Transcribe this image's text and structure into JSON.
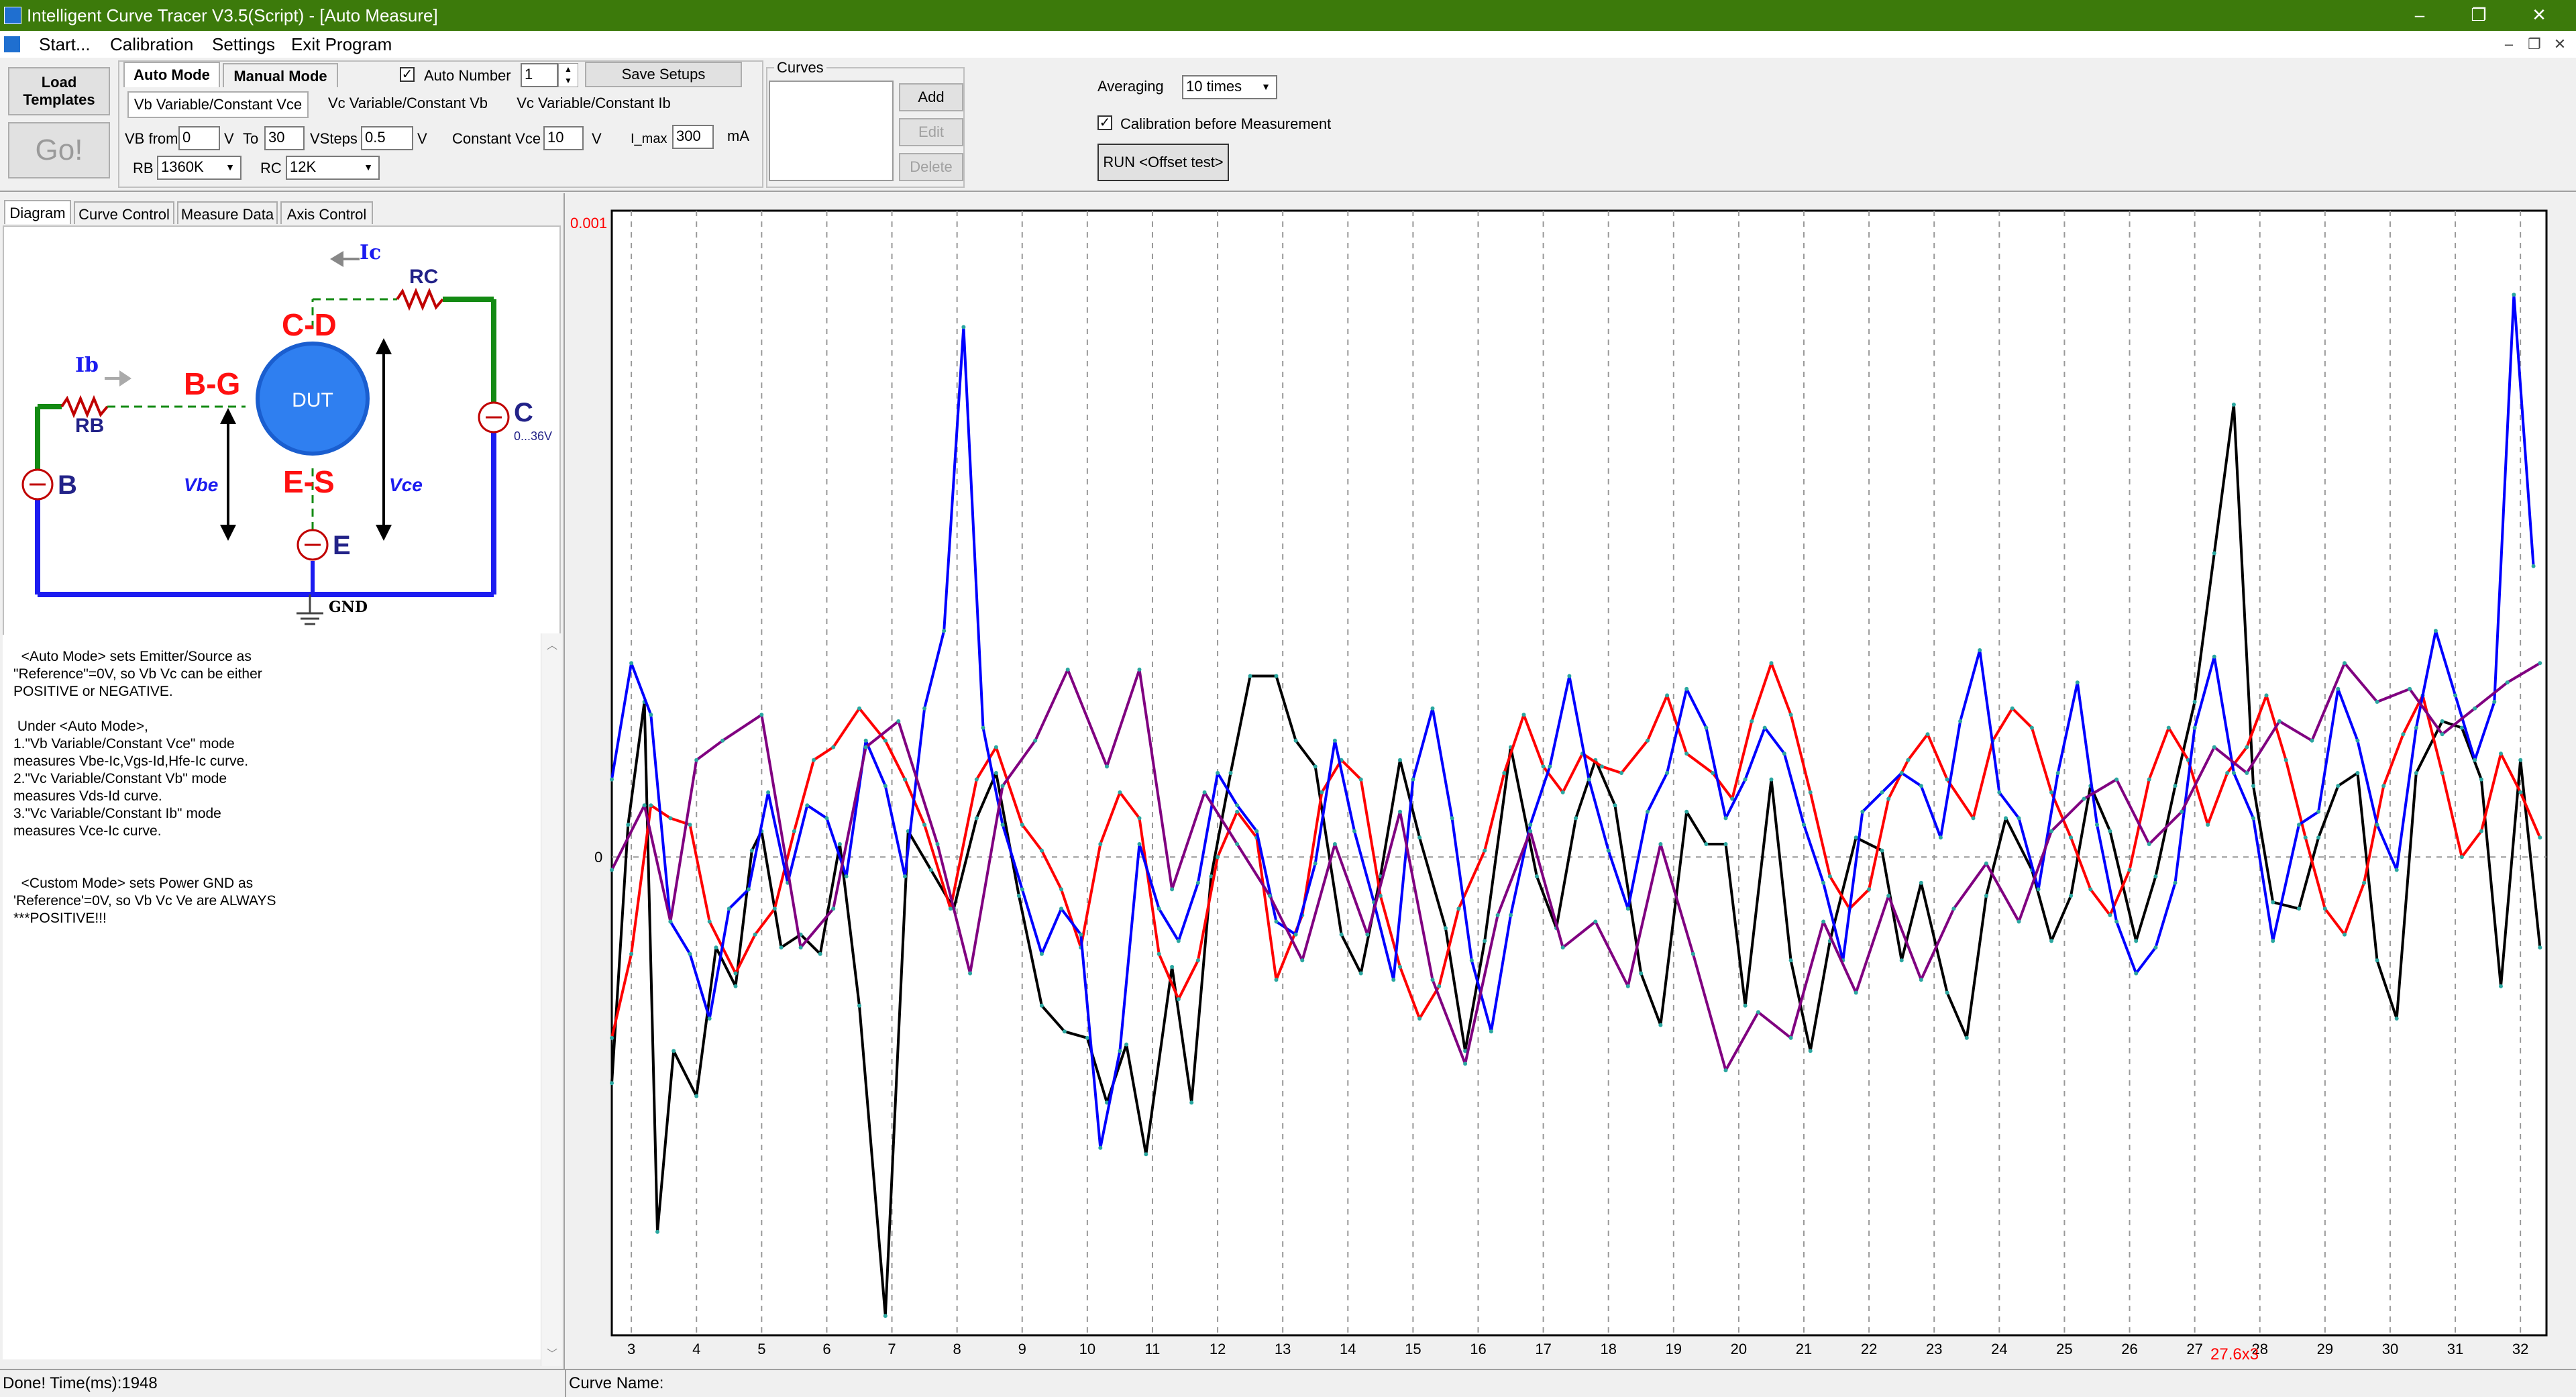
{
  "window": {
    "title": "Intelligent Curve Tracer V3.5(Script) - [Auto Measure]",
    "controls": [
      "–",
      "❐",
      "✕"
    ]
  },
  "menu": [
    "Start...",
    "Calibration",
    "Settings",
    "Exit Program"
  ],
  "mdi_controls": [
    "–",
    "❐",
    "✕"
  ],
  "toolbar": {
    "load_templates": "Load Templates",
    "go": "Go!",
    "mode_tabs": [
      "Auto Mode",
      "Manual Mode"
    ],
    "auto_number_label": "Auto Number",
    "auto_number_checked": true,
    "auto_number_value": "1",
    "save_setups": "Save Setups",
    "sub_tabs": [
      "Vb Variable/Constant Vce",
      "Vc Variable/Constant Vb",
      "Vc Variable/Constant Ib"
    ],
    "vb_from_label": "VB from",
    "vb_from": "0",
    "v_unit": "V",
    "to_label": "To",
    "to_value": "30",
    "vsteps_label": "VSteps",
    "vsteps_value": "0.5",
    "const_vce_label": "Constant Vce",
    "const_vce_value": "10",
    "imax_label": "I_max",
    "imax_value": "300",
    "ma_unit": "mA",
    "rb_label": "RB",
    "rb_value": "1360K",
    "rc_label": "RC",
    "rc_value": "12K",
    "curves_label": "Curves",
    "add": "Add",
    "edit": "Edit",
    "delete": "Delete",
    "averaging_label": "Averaging",
    "averaging_value": "10 times",
    "calibration_label": "Calibration before Measurement",
    "calibration_checked": true,
    "run_offset": "RUN <Offset test>"
  },
  "left_tabs": [
    "Diagram",
    "Curve Control",
    "Measure Data",
    "Axis Control"
  ],
  "diagram": {
    "ic": "Ic",
    "rc": "RC",
    "cd": "C-D",
    "ib": "Ib",
    "bg": "B-G",
    "dut": "DUT",
    "rb": "RB",
    "b": "B",
    "c": "C",
    "c_range": "0...36V",
    "vbe": "Vbe",
    "es": "E-S",
    "vce": "Vce",
    "e": "E",
    "gnd": "GND"
  },
  "description": "  <Auto Mode> sets Emitter/Source as\n\"Reference\"=0V, so Vb Vc can be either\nPOSITIVE or NEGATIVE.\n\n Under <Auto Mode>,\n1.\"Vb Variable/Constant Vce\" mode\nmeasures Vbe-Ic,Vgs-Id,Hfe-Ic curve.\n2.\"Vc Variable/Constant Vb\" mode\nmeasures Vds-Id curve.\n3.\"Vc Variable/Constant Ib\" mode\nmeasures Vce-Ic curve.\n\n\n  <Custom Mode> sets Power GND as\n'Reference'=0V, so Vb Vc Ve are ALWAYS\n***POSITIVE!!!",
  "status": {
    "left": "Done!  Time(ms):1948",
    "curve_name_label": "Curve Name:"
  },
  "colors": {
    "titlebar": "#3c7a0b",
    "series_black": "#000000",
    "series_red": "#ff0000",
    "series_blue": "#0000ff",
    "series_purple": "#800080"
  },
  "chart_data": {
    "type": "line",
    "y_top_label": "0.001",
    "y_zero_label": "0",
    "ylim": [
      -0.00074,
      0.001
    ],
    "xlim": [
      2.7,
      32.4
    ],
    "x_ticks": [
      3,
      4,
      5,
      6,
      7,
      8,
      9,
      10,
      11,
      12,
      13,
      14,
      15,
      16,
      17,
      18,
      19,
      20,
      21,
      22,
      23,
      24,
      25,
      26,
      27,
      28,
      29,
      30,
      31,
      32
    ],
    "cursor_label": "27.6x3",
    "grid": true,
    "series": [
      {
        "color": "#000000",
        "x": [
          2.7,
          2.95,
          3.2,
          3.4,
          3.65,
          4.0,
          4.3,
          4.6,
          4.85,
          5.0,
          5.3,
          5.6,
          5.9,
          6.2,
          6.5,
          6.9,
          7.25,
          7.6,
          7.95,
          8.3,
          8.6,
          8.95,
          9.3,
          9.65,
          10.0,
          10.3,
          10.6,
          10.9,
          11.3,
          11.6,
          11.9,
          12.2,
          12.5,
          12.9,
          13.2,
          13.5,
          13.9,
          14.2,
          14.5,
          14.8,
          15.1,
          15.5,
          15.8,
          16.1,
          16.5,
          16.9,
          17.2,
          17.5,
          17.8,
          18.1,
          18.5,
          18.8,
          19.2,
          19.5,
          19.8,
          20.1,
          20.5,
          20.8,
          21.1,
          21.4,
          21.8,
          22.2,
          22.5,
          22.8,
          23.2,
          23.5,
          23.8,
          24.1,
          24.5,
          24.8,
          25.1,
          25.4,
          25.7,
          26.1,
          26.4,
          26.7,
          27.0,
          27.3,
          27.6,
          27.9,
          28.2,
          28.6,
          28.9,
          29.2,
          29.5,
          29.8,
          30.1,
          30.4,
          30.8,
          31.1,
          31.4,
          31.7,
          32.0,
          32.3
        ],
        "y": [
          -0.00035,
          5e-05,
          0.00024,
          -0.00058,
          -0.0003,
          -0.00037,
          -0.00014,
          -0.0002,
          1e-05,
          4e-05,
          -0.00014,
          -0.00012,
          -0.00015,
          2e-05,
          -0.00023,
          -0.00071,
          4e-05,
          -2e-05,
          -8e-05,
          6e-05,
          0.00013,
          -6e-05,
          -0.00023,
          -0.00027,
          -0.00028,
          -0.00038,
          -0.00029,
          -0.00046,
          -0.00017,
          -0.00038,
          -3e-05,
          0.00013,
          0.00028,
          0.00028,
          0.00018,
          0.00014,
          -0.00012,
          -0.00018,
          -3e-05,
          0.00015,
          3e-05,
          -0.00011,
          -0.0003,
          -0.00013,
          0.00017,
          -3e-05,
          -0.00011,
          6e-05,
          0.00015,
          8e-05,
          -0.00018,
          -0.00026,
          7e-05,
          2e-05,
          2e-05,
          -0.00023,
          0.00012,
          -0.00016,
          -0.0003,
          -0.00013,
          3e-05,
          1e-05,
          -0.00016,
          -4e-05,
          -0.00021,
          -0.00028,
          -6e-05,
          6e-05,
          -2e-05,
          -0.00013,
          -6e-05,
          0.00011,
          4e-05,
          -0.00013,
          -3e-05,
          0.00011,
          0.00024,
          0.00047,
          0.0007,
          0.00011,
          -7e-05,
          -8e-05,
          3e-05,
          0.00011,
          0.00013,
          -0.00016,
          -0.00025,
          0.00013,
          0.00021,
          0.0002,
          0.00012,
          -0.0002,
          0.00015,
          -0.00014
        ]
      },
      {
        "color": "#ff0000",
        "x": [
          2.7,
          3.0,
          3.3,
          3.6,
          3.9,
          4.2,
          4.6,
          4.9,
          5.2,
          5.5,
          5.8,
          6.1,
          6.5,
          6.9,
          7.2,
          7.5,
          7.9,
          8.3,
          8.6,
          9.0,
          9.3,
          9.6,
          9.9,
          10.2,
          10.5,
          10.8,
          11.1,
          11.4,
          11.7,
          12.0,
          12.3,
          12.6,
          12.9,
          13.3,
          13.6,
          13.9,
          14.2,
          14.5,
          14.8,
          15.1,
          15.4,
          15.7,
          16.1,
          16.4,
          16.7,
          17.0,
          17.3,
          17.6,
          17.9,
          18.2,
          18.6,
          18.9,
          19.2,
          19.6,
          19.9,
          20.2,
          20.5,
          20.8,
          21.1,
          21.4,
          21.7,
          22.0,
          22.3,
          22.6,
          22.9,
          23.2,
          23.6,
          23.9,
          24.2,
          24.5,
          24.8,
          25.1,
          25.4,
          25.7,
          26.0,
          26.3,
          26.6,
          26.9,
          27.2,
          27.5,
          27.8,
          28.1,
          28.4,
          28.7,
          29.0,
          29.3,
          29.6,
          29.9,
          30.2,
          30.5,
          30.8,
          31.1,
          31.4,
          31.7,
          32.0,
          32.3
        ],
        "y": [
          -0.00028,
          -0.00015,
          8e-05,
          6e-05,
          5e-05,
          -0.0001,
          -0.00018,
          -0.00012,
          -8e-05,
          4e-05,
          0.00015,
          0.00017,
          0.00023,
          0.00018,
          0.00012,
          5e-05,
          -8e-05,
          0.00012,
          0.00017,
          5e-05,
          1e-05,
          -5e-05,
          -0.00014,
          2e-05,
          0.0001,
          6e-05,
          -0.00015,
          -0.00022,
          -0.00016,
          0.0,
          7e-05,
          3e-05,
          -0.00019,
          -9e-05,
          0.0001,
          0.00015,
          0.00012,
          -6e-05,
          -0.00017,
          -0.00025,
          -0.0002,
          -8e-05,
          1e-05,
          0.00013,
          0.00022,
          0.00014,
          0.0001,
          0.00016,
          0.00014,
          0.00013,
          0.00018,
          0.00025,
          0.00016,
          0.00013,
          9e-05,
          0.00021,
          0.0003,
          0.00022,
          0.0001,
          -3e-05,
          -8e-05,
          -5e-05,
          9e-05,
          0.00015,
          0.00019,
          0.00012,
          6e-05,
          0.00018,
          0.00023,
          0.0002,
          0.0001,
          3e-05,
          -5e-05,
          -9e-05,
          -2e-05,
          0.00012,
          0.0002,
          0.00015,
          5e-05,
          0.00013,
          0.00017,
          0.00025,
          0.00015,
          3e-05,
          -8e-05,
          -0.00012,
          -4e-05,
          0.00011,
          0.00019,
          0.00025,
          0.00013,
          0.0,
          4e-05,
          0.00016,
          0.0001,
          3e-05
        ]
      },
      {
        "color": "#0000ff",
        "x": [
          2.7,
          3.0,
          3.3,
          3.6,
          3.9,
          4.2,
          4.5,
          4.8,
          5.1,
          5.4,
          5.7,
          6.0,
          6.3,
          6.6,
          6.9,
          7.2,
          7.5,
          7.8,
          8.1,
          8.4,
          8.7,
          9.0,
          9.3,
          9.6,
          9.9,
          10.2,
          10.5,
          10.8,
          11.1,
          11.4,
          11.7,
          12.0,
          12.3,
          12.6,
          12.9,
          13.2,
          13.5,
          13.8,
          14.1,
          14.4,
          14.7,
          15.0,
          15.3,
          15.6,
          15.9,
          16.2,
          16.5,
          16.8,
          17.1,
          17.4,
          17.7,
          18.0,
          18.3,
          18.6,
          18.9,
          19.2,
          19.5,
          19.8,
          20.1,
          20.4,
          20.7,
          21.0,
          21.3,
          21.6,
          21.9,
          22.2,
          22.5,
          22.8,
          23.1,
          23.4,
          23.7,
          24.0,
          24.3,
          24.6,
          24.9,
          25.2,
          25.5,
          25.8,
          26.1,
          26.4,
          26.7,
          27.0,
          27.3,
          27.6,
          27.9,
          28.2,
          28.6,
          28.9,
          29.2,
          29.5,
          29.8,
          30.1,
          30.4,
          30.7,
          31.0,
          31.3,
          31.6,
          31.9,
          32.2
        ],
        "y": [
          0.00012,
          0.0003,
          0.00022,
          -0.0001,
          -0.00015,
          -0.00025,
          -8e-05,
          -5e-05,
          0.0001,
          -4e-05,
          8e-05,
          6e-05,
          -3e-05,
          0.00018,
          0.00011,
          -3e-05,
          0.00023,
          0.00035,
          0.00082,
          0.0002,
          5e-05,
          -5e-05,
          -0.00015,
          -8e-05,
          -0.00012,
          -0.00045,
          -0.0003,
          2e-05,
          -8e-05,
          -0.00013,
          -4e-05,
          0.00013,
          8e-05,
          4e-05,
          -0.0001,
          -0.00012,
          -1e-05,
          0.00018,
          4e-05,
          -7e-05,
          -0.00019,
          0.00012,
          0.00023,
          6e-05,
          -0.00016,
          -0.00027,
          -9e-05,
          5e-05,
          0.00014,
          0.00028,
          0.00012,
          1e-05,
          -8e-05,
          7e-05,
          0.00013,
          0.00026,
          0.0002,
          6e-05,
          0.00012,
          0.0002,
          0.00016,
          5e-05,
          -4e-05,
          -0.00016,
          7e-05,
          0.0001,
          0.00013,
          0.00011,
          3e-05,
          0.00021,
          0.00032,
          0.0001,
          6e-05,
          -5e-05,
          0.00013,
          0.00027,
          5e-05,
          -0.0001,
          -0.00018,
          -0.00014,
          -4e-05,
          0.0002,
          0.00031,
          0.00013,
          6e-05,
          -0.00013,
          5e-05,
          7e-05,
          0.00026,
          0.00018,
          5e-05,
          -2e-05,
          0.0002,
          0.00035,
          0.00025,
          0.00015,
          0.00024,
          0.00087,
          0.00045
        ]
      },
      {
        "color": "#800080",
        "x": [
          2.7,
          3.2,
          3.6,
          4.0,
          4.4,
          5.0,
          5.6,
          6.1,
          6.6,
          7.1,
          7.7,
          8.2,
          8.7,
          9.2,
          9.7,
          10.3,
          10.8,
          11.3,
          11.8,
          12.3,
          12.8,
          13.3,
          13.8,
          14.3,
          14.8,
          15.3,
          15.8,
          16.3,
          16.8,
          17.3,
          17.8,
          18.3,
          18.8,
          19.3,
          19.8,
          20.3,
          20.8,
          21.3,
          21.8,
          22.3,
          22.8,
          23.3,
          23.8,
          24.3,
          24.8,
          25.3,
          25.8,
          26.3,
          26.8,
          27.3,
          27.8,
          28.3,
          28.8,
          29.3,
          29.8,
          30.3,
          30.8,
          31.3,
          31.8,
          32.3
        ],
        "y": [
          -2e-05,
          8e-05,
          -0.0001,
          0.00015,
          0.00018,
          0.00022,
          -0.00014,
          -8e-05,
          0.00017,
          0.00021,
          2e-05,
          -0.00018,
          0.00011,
          0.00018,
          0.00029,
          0.00014,
          0.00029,
          -5e-05,
          0.0001,
          2e-05,
          -6e-05,
          -0.00016,
          2e-05,
          -0.00012,
          7e-05,
          -0.00019,
          -0.00032,
          -9e-05,
          4e-05,
          -0.00014,
          -0.0001,
          -0.0002,
          2e-05,
          -0.00015,
          -0.00033,
          -0.00024,
          -0.00028,
          -0.0001,
          -0.00021,
          -6e-05,
          -0.00019,
          -8e-05,
          -1e-05,
          -0.0001,
          4e-05,
          9e-05,
          0.00012,
          2e-05,
          7e-05,
          0.00017,
          0.00013,
          0.00021,
          0.00018,
          0.0003,
          0.00024,
          0.00026,
          0.00019,
          0.00023,
          0.00027,
          0.0003
        ]
      }
    ]
  }
}
